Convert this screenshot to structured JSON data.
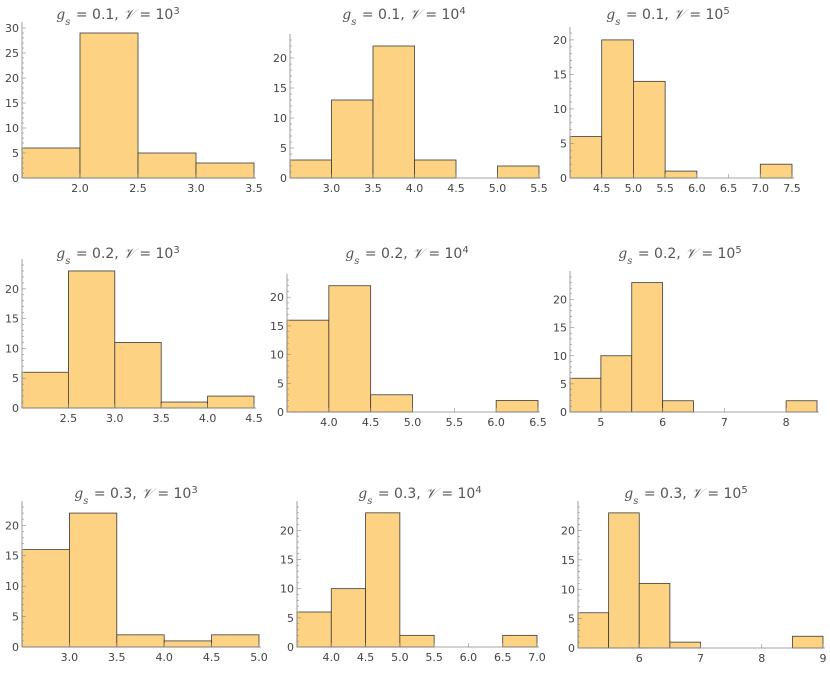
{
  "colors": {
    "bar_fill": "#FDD383",
    "bar_stroke": "#3a3a3a",
    "axis": "#888888",
    "text": "#444444",
    "title": "#555555"
  },
  "chart_data": [
    {
      "type": "bar",
      "title": {
        "g": "0.1",
        "v": "3"
      },
      "xlim": [
        1.5,
        3.5
      ],
      "ylim": [
        0,
        30
      ],
      "xticks": [
        "2.0",
        "2.5",
        "3.0",
        "3.5"
      ],
      "xtick_values": [
        2.0,
        2.5,
        3.0,
        3.5
      ],
      "yticks": [
        0,
        5,
        10,
        15,
        20,
        25,
        30
      ],
      "grid": false,
      "bins": [
        [
          1.5,
          2.0,
          6
        ],
        [
          2.0,
          2.5,
          29
        ],
        [
          2.5,
          3.0,
          5
        ],
        [
          3.0,
          3.5,
          3
        ]
      ]
    },
    {
      "type": "bar",
      "title": {
        "g": "0.1",
        "v": "4"
      },
      "xlim": [
        2.5,
        5.5
      ],
      "ylim": [
        0,
        23
      ],
      "xticks": [
        "3.0",
        "3.5",
        "4.0",
        "4.5",
        "5.0",
        "5.5"
      ],
      "xtick_values": [
        3.0,
        3.5,
        4.0,
        4.5,
        5.0,
        5.5
      ],
      "yticks": [
        0,
        5,
        10,
        15,
        20
      ],
      "grid": false,
      "bins": [
        [
          2.5,
          3.0,
          3
        ],
        [
          3.0,
          3.5,
          13
        ],
        [
          3.5,
          4.0,
          22
        ],
        [
          4.0,
          4.5,
          3
        ],
        [
          5.0,
          5.5,
          2
        ]
      ]
    },
    {
      "type": "bar",
      "title": {
        "g": "0.1",
        "v": "5"
      },
      "xlim": [
        4.0,
        7.5
      ],
      "ylim": [
        0,
        21
      ],
      "xticks": [
        "4.5",
        "5.0",
        "5.5",
        "6.0",
        "6.5",
        "7.0",
        "7.5"
      ],
      "xtick_values": [
        4.5,
        5.0,
        5.5,
        6.0,
        6.5,
        7.0,
        7.5
      ],
      "yticks": [
        0,
        5,
        10,
        15,
        20
      ],
      "grid": false,
      "bins": [
        [
          4.0,
          4.5,
          6
        ],
        [
          4.5,
          5.0,
          20
        ],
        [
          5.0,
          5.5,
          14
        ],
        [
          5.5,
          6.0,
          1
        ],
        [
          7.0,
          7.5,
          2
        ]
      ]
    },
    {
      "type": "bar",
      "title": {
        "g": "0.2",
        "v": "3"
      },
      "xlim": [
        2.0,
        4.5
      ],
      "ylim": [
        0,
        24
      ],
      "xticks": [
        "2.5",
        "3.0",
        "3.5",
        "4.0",
        "4.5"
      ],
      "xtick_values": [
        2.5,
        3.0,
        3.5,
        4.0,
        4.5
      ],
      "yticks": [
        0,
        5,
        10,
        15,
        20
      ],
      "grid": false,
      "bins": [
        [
          2.0,
          2.5,
          6
        ],
        [
          2.5,
          3.0,
          23
        ],
        [
          3.0,
          3.5,
          11
        ],
        [
          3.5,
          4.0,
          1
        ],
        [
          4.0,
          4.5,
          2
        ]
      ]
    },
    {
      "type": "bar",
      "title": {
        "g": "0.2",
        "v": "4"
      },
      "xlim": [
        3.5,
        6.5
      ],
      "ylim": [
        0,
        23
      ],
      "xticks": [
        "4.0",
        "4.5",
        "5.0",
        "5.5",
        "6.0",
        "6.5"
      ],
      "xtick_values": [
        4.0,
        4.5,
        5.0,
        5.5,
        6.0,
        6.5
      ],
      "yticks": [
        0,
        5,
        10,
        15,
        20
      ],
      "grid": false,
      "bins": [
        [
          3.5,
          4.0,
          16
        ],
        [
          4.0,
          4.5,
          22
        ],
        [
          4.5,
          5.0,
          3
        ],
        [
          6.0,
          6.5,
          2
        ]
      ]
    },
    {
      "type": "bar",
      "title": {
        "g": "0.2",
        "v": "5"
      },
      "xlim": [
        4.5,
        8.5
      ],
      "ylim": [
        0,
        24
      ],
      "xticks": [
        "5",
        "6",
        "7",
        "8"
      ],
      "xtick_values": [
        5,
        6,
        7,
        8
      ],
      "yticks": [
        0,
        5,
        10,
        15,
        20
      ],
      "grid": false,
      "bins": [
        [
          4.5,
          5.0,
          6
        ],
        [
          5.0,
          5.5,
          10
        ],
        [
          5.5,
          6.0,
          23
        ],
        [
          6.0,
          6.5,
          2
        ],
        [
          8.0,
          8.5,
          2
        ]
      ]
    },
    {
      "type": "bar",
      "title": {
        "g": "0.3",
        "v": "3"
      },
      "xlim": [
        2.5,
        5.0
      ],
      "ylim": [
        0,
        23
      ],
      "xticks": [
        "3.0",
        "3.5",
        "4.0",
        "4.5",
        "5.0"
      ],
      "xtick_values": [
        3.0,
        3.5,
        4.0,
        4.5,
        5.0
      ],
      "yticks": [
        0,
        5,
        10,
        15,
        20
      ],
      "grid": false,
      "bins": [
        [
          2.5,
          3.0,
          16
        ],
        [
          3.0,
          3.5,
          22
        ],
        [
          3.5,
          4.0,
          2
        ],
        [
          4.0,
          4.5,
          1
        ],
        [
          4.5,
          5.0,
          2
        ]
      ]
    },
    {
      "type": "bar",
      "title": {
        "g": "0.3",
        "v": "4"
      },
      "xlim": [
        3.5,
        7.0
      ],
      "ylim": [
        0,
        24
      ],
      "xticks": [
        "4.0",
        "4.5",
        "5.0",
        "5.5",
        "6.0",
        "6.5",
        "7.0"
      ],
      "xtick_values": [
        4.0,
        4.5,
        5.0,
        5.5,
        6.0,
        6.5,
        7.0
      ],
      "yticks": [
        0,
        5,
        10,
        15,
        20
      ],
      "grid": false,
      "bins": [
        [
          3.5,
          4.0,
          6
        ],
        [
          4.0,
          4.5,
          10
        ],
        [
          4.5,
          5.0,
          23
        ],
        [
          5.0,
          5.5,
          2
        ],
        [
          6.5,
          7.0,
          2
        ]
      ]
    },
    {
      "type": "bar",
      "title": {
        "g": "0.3",
        "v": "5"
      },
      "xlim": [
        5.0,
        9.0
      ],
      "ylim": [
        0,
        24
      ],
      "xticks": [
        "6",
        "7",
        "8",
        "9"
      ],
      "xtick_values": [
        6,
        7,
        8,
        9
      ],
      "yticks": [
        0,
        5,
        10,
        15,
        20
      ],
      "grid": false,
      "bins": [
        [
          5.0,
          5.5,
          6
        ],
        [
          5.5,
          6.0,
          23
        ],
        [
          6.0,
          6.5,
          11
        ],
        [
          6.5,
          7.0,
          1
        ],
        [
          8.5,
          9.0,
          2
        ]
      ]
    }
  ]
}
